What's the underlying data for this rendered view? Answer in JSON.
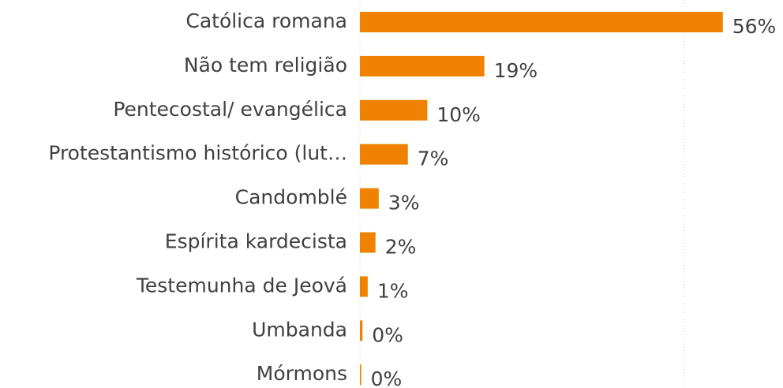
{
  "chart_data": {
    "type": "barh",
    "categories": [
      "Católica romana",
      "Não tem religião",
      "Pentecostal/ evangélica",
      "Protestantismo histórico (lut…",
      "Candomblé",
      "Espírita kardecista",
      "Testemunha de Jeová",
      "Umbanda",
      "Mórmons"
    ],
    "values": [
      56,
      19.2,
      10.4,
      7.4,
      2.9,
      2.4,
      1.2,
      0.4,
      0.2
    ],
    "value_labels": [
      "56%",
      "19%",
      "10%",
      "7%",
      "3%",
      "2%",
      "1%",
      "0%",
      "0%"
    ],
    "color": "#ef8200",
    "xlim": [
      0,
      60
    ],
    "xticks": [
      0,
      50
    ],
    "xtick_labels_shown": false,
    "grid": true
  }
}
